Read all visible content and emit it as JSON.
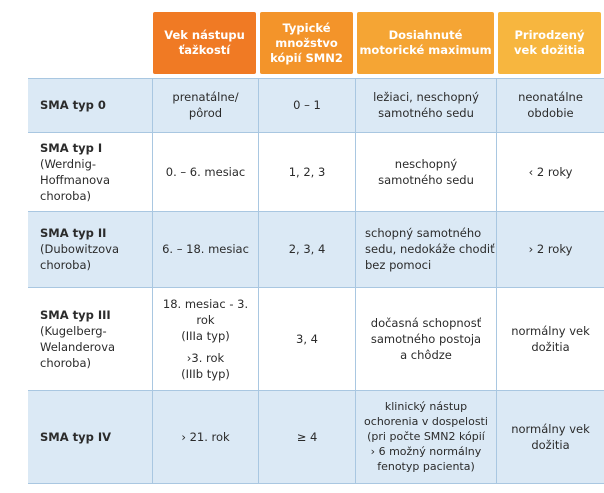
{
  "header": {
    "col2": [
      "Vek nástupu",
      "ťažkostí"
    ],
    "col3": [
      "Typické",
      "množstvo",
      "kópií SMN2"
    ],
    "col4": [
      "Dosiahnuté",
      "motorické maximum"
    ],
    "col5": [
      "Prirodzený",
      "vek dožitia"
    ]
  },
  "rows": [
    {
      "name": "SMA typ 0",
      "sub": [],
      "onset": [
        "prenatálne/",
        "pôrod"
      ],
      "copies": "0 – 1",
      "motor": [
        "ležiaci, neschopný",
        "samotného sedu"
      ],
      "life": [
        "neonatálne",
        "obdobie"
      ]
    },
    {
      "name": "SMA typ I",
      "sub": [
        "(Werdnig-",
        "Hoffmanova",
        "choroba)"
      ],
      "onset": [
        "0. – 6. mesiac"
      ],
      "copies": "1, 2, 3",
      "motor": [
        "neschopný",
        "samotného sedu"
      ],
      "life": [
        "‹ 2 roky"
      ]
    },
    {
      "name": "SMA typ II",
      "sub": [
        "(Dubowitzova",
        "choroba)"
      ],
      "onset": [
        "6. – 18. mesiac"
      ],
      "copies": "2, 3, 4",
      "motor": [
        "schopný samotného",
        "sedu, nedokáže chodiť",
        "bez pomoci"
      ],
      "life": [
        "› 2 roky"
      ]
    },
    {
      "name": "SMA typ III",
      "sub": [
        "(Kugelberg-",
        "Welanderova",
        "choroba)"
      ],
      "onset": [
        "18. mesiac - 3. rok",
        "(IIIa typ)",
        "›3. rok",
        "(IIIb typ)"
      ],
      "copies": "3, 4",
      "motor": [
        "dočasná schopnosť",
        "samotného postoja",
        "a chôdze"
      ],
      "life": [
        "normálny vek",
        "dožitia"
      ]
    },
    {
      "name": "SMA typ IV",
      "sub": [],
      "onset": [
        "› 21. rok"
      ],
      "copies": "≥ 4",
      "motor": [
        "klinický nástup",
        "ochorenia v dospelosti",
        "(pri počte SMN2 kópií",
        "› 6 možný normálny",
        "fenotyp pacienta)"
      ],
      "life": [
        "normálny vek",
        "dožitia"
      ]
    }
  ]
}
